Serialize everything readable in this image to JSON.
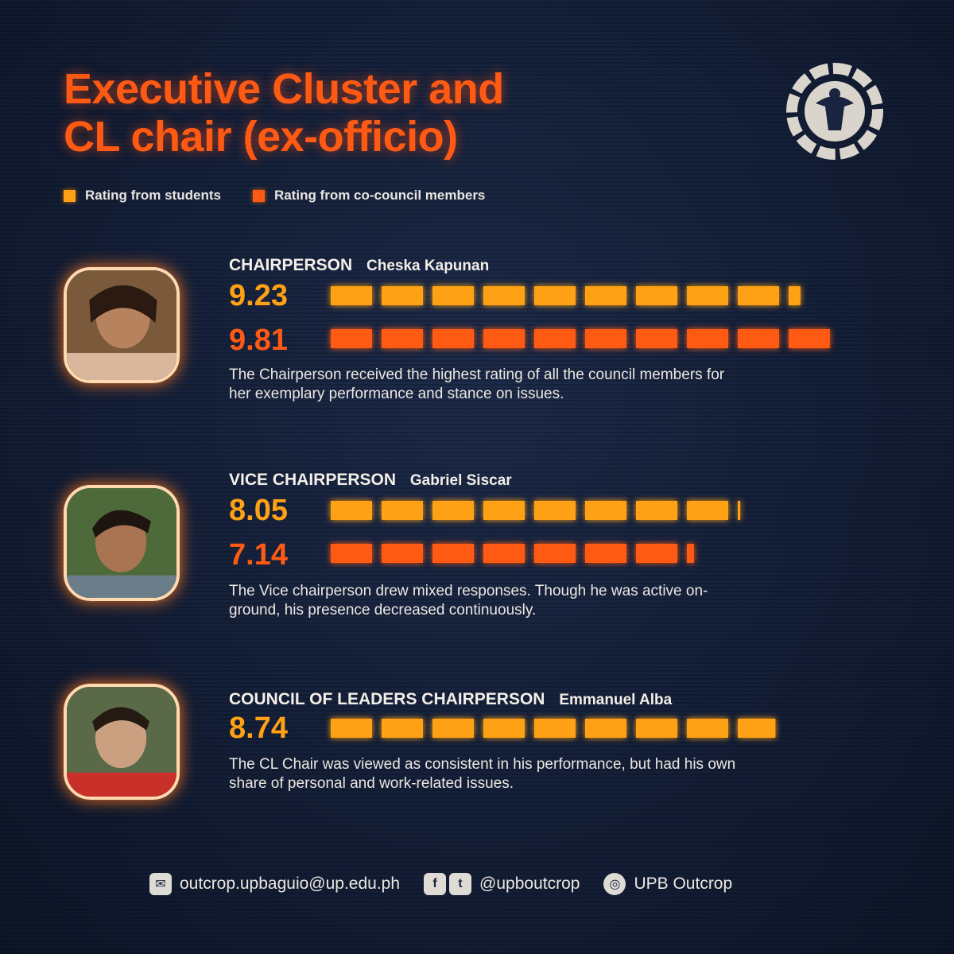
{
  "title_line1": "Executive Cluster and",
  "title_line2": "CL chair (ex-officio)",
  "colors": {
    "students": "#ffa114",
    "council": "#ff5a14",
    "title": "#ff5a14",
    "background": "#141f38"
  },
  "legend": {
    "students": "Rating from students",
    "council": "Rating from co-council members"
  },
  "chart_data": {
    "type": "bar",
    "orientation": "horizontal",
    "scale_max": 10,
    "series": [
      {
        "name": "Rating from students",
        "values": [
          9.23,
          8.05,
          8.74
        ]
      },
      {
        "name": "Rating from co-council members",
        "values": [
          9.81,
          7.14,
          null
        ]
      }
    ],
    "categories": [
      "Cheska Kapunan",
      "Gabriel Siscar",
      "Emmanuel Alba"
    ]
  },
  "members": [
    {
      "role": "CHAIRPERSON",
      "name": "Cheska Kapunan",
      "student_score": "9.23",
      "council_score": "9.81",
      "description": "The Chairperson received the highest rating of all the council members for her exemplary performance and stance on issues."
    },
    {
      "role": "VICE CHAIRPERSON",
      "name": "Gabriel Siscar",
      "student_score": "8.05",
      "council_score": "7.14",
      "description": "The Vice chairperson drew mixed responses. Though he was active on-ground, his presence decreased continuously."
    },
    {
      "role": "COUNCIL OF LEADERS CHAIRPERSON",
      "name": "Emmanuel Alba",
      "student_score": "8.74",
      "description": "The CL Chair was viewed as consistent in his performance, but had his own share of personal and work-related issues."
    }
  ],
  "footer": {
    "email": "outcrop.upbaguio@up.edu.ph",
    "social": "@upboutcrop",
    "instagram": "UPB Outcrop",
    "email_icon": "envelope-icon",
    "facebook_icon": "facebook-icon",
    "twitter_icon": "twitter-icon",
    "instagram_icon": "instagram-icon"
  }
}
